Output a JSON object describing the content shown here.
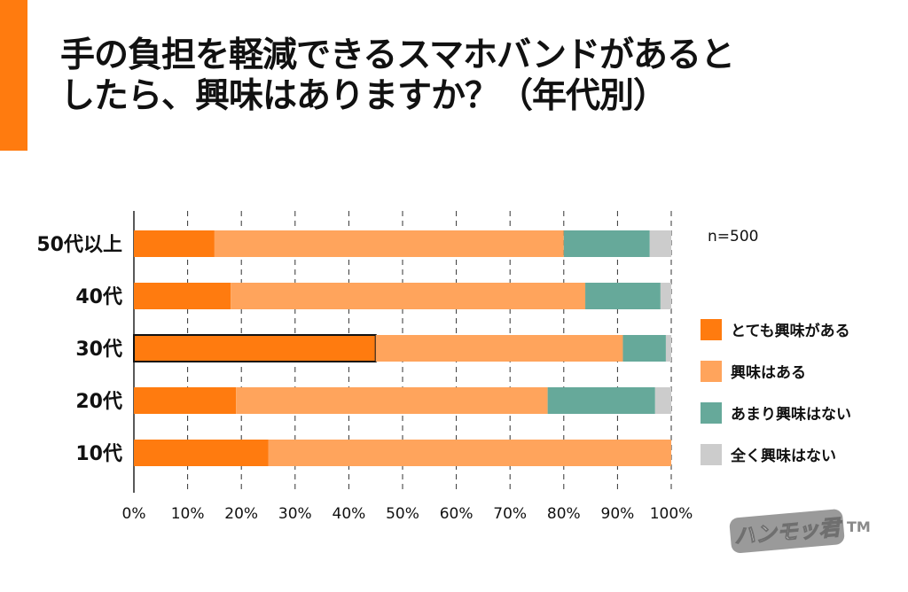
{
  "title_line1": "手の負担を軽減できるスマホバンドがあると",
  "title_line2": "したら、興味はありますか？（年代別）",
  "sample_note": "n=500",
  "accent_color": "#FF7B0F",
  "logo_text": "ハンモッ君",
  "logo_mark": "TM",
  "chart_data": {
    "type": "bar",
    "orientation": "horizontal",
    "stacked": "percent",
    "categories": [
      "50代以上",
      "40代",
      "30代",
      "20代",
      "10代"
    ],
    "series": [
      {
        "name": "とても興味がある",
        "color": "#FF7B0F",
        "values": [
          15,
          18,
          45,
          19,
          25
        ]
      },
      {
        "name": "興味はある",
        "color": "#FFA45C",
        "values": [
          65,
          66,
          46,
          58,
          75
        ]
      },
      {
        "name": "あまり興味はない",
        "color": "#66A99A",
        "values": [
          16,
          14,
          8,
          20,
          0
        ]
      },
      {
        "name": "全く興味はない",
        "color": "#CCCCCC",
        "values": [
          4,
          2,
          1,
          3,
          0
        ]
      }
    ],
    "highlight": {
      "category": "30代",
      "series": "とても興味がある"
    },
    "xlim": [
      0,
      100
    ],
    "xticks": [
      "0%",
      "10%",
      "20%",
      "30%",
      "40%",
      "50%",
      "60%",
      "70%",
      "80%",
      "90%",
      "100%"
    ],
    "grid": "vertical-dashed",
    "legend_position": "right"
  }
}
